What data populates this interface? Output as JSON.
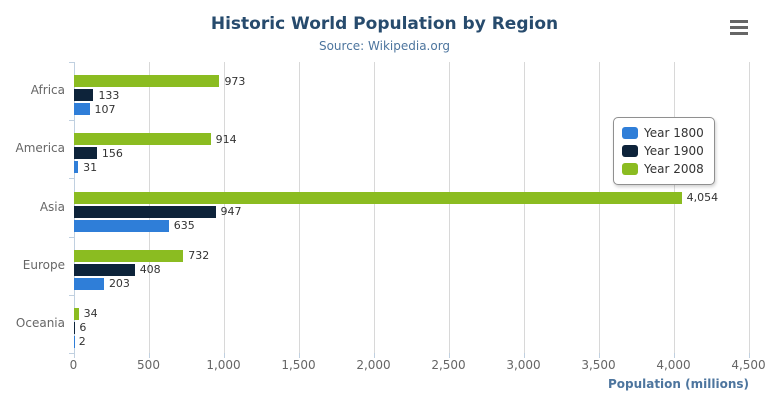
{
  "chart_data": {
    "type": "bar",
    "orientation": "horizontal",
    "title": "Historic World Population by Region",
    "subtitle": "Source: Wikipedia.org",
    "xlabel": "Population (millions)",
    "categories": [
      "Africa",
      "America",
      "Asia",
      "Europe",
      "Oceania"
    ],
    "series": [
      {
        "name": "Year 1800",
        "color": "#2f7ed8",
        "values": [
          107,
          31,
          635,
          203,
          2
        ]
      },
      {
        "name": "Year 1900",
        "color": "#0d233a",
        "values": [
          133,
          156,
          947,
          408,
          6
        ]
      },
      {
        "name": "Year 2008",
        "color": "#8bbc21",
        "values": [
          973,
          914,
          4054,
          732,
          34
        ]
      }
    ],
    "series_display_order_top_to_bottom": [
      "Year 2008",
      "Year 1900",
      "Year 1800"
    ],
    "x_range": [
      0,
      4500
    ],
    "x_tick_interval": 500,
    "x_ticks": [
      "0",
      "500",
      "1,000",
      "1,500",
      "2,000",
      "2,500",
      "3,000",
      "3,500",
      "4,000",
      "4,500"
    ],
    "grid": true,
    "legend_position": "right-inside",
    "data_labels_visible": true
  },
  "colors": {
    "title": "#274b6d",
    "subtitle": "#4d759e",
    "axis_title": "#4d759e",
    "axis_labels": "#666666",
    "gridline": "#d8d8d8",
    "axis_line": "#c0d0e0",
    "data_label": "#333333",
    "legend_border": "#909090"
  },
  "menu": {
    "icon": "hamburger-menu-icon"
  }
}
